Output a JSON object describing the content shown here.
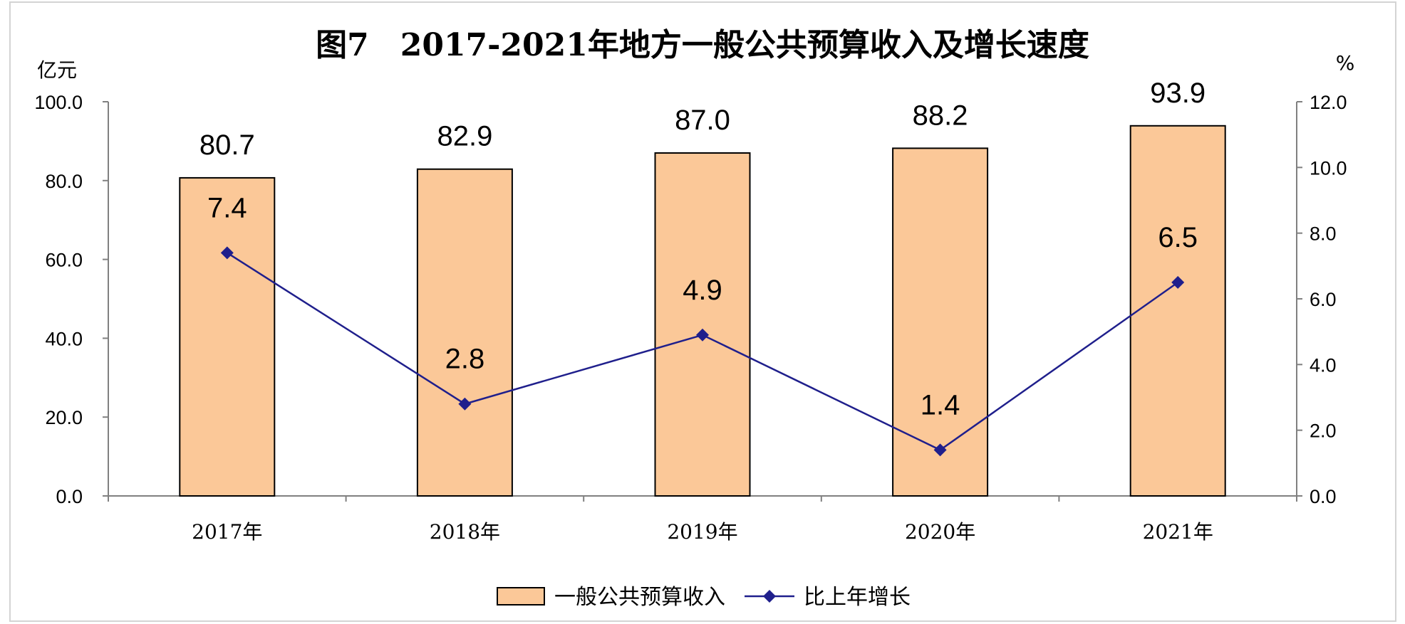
{
  "chart_data": {
    "type": "bar",
    "title": "图7　2017-2021年地方一般公共预算收入及增长速度",
    "categories": [
      "2017年",
      "2018年",
      "2019年",
      "2020年",
      "2021年"
    ],
    "y_left_unit": "亿元",
    "y_right_unit": "%",
    "y_left_ticks": [
      "0.0",
      "20.0",
      "40.0",
      "60.0",
      "80.0",
      "100.0"
    ],
    "y_right_ticks": [
      "0.0",
      "2.0",
      "4.0",
      "6.0",
      "8.0",
      "10.0",
      "12.0"
    ],
    "ylim_left": [
      0,
      100
    ],
    "ylim_right": [
      0,
      12
    ],
    "series": [
      {
        "name": "一般公共预算收入",
        "type": "bar",
        "axis": "left",
        "color": "#FBC898",
        "values": [
          80.7,
          82.9,
          87.0,
          88.2,
          93.9
        ],
        "labels": [
          "80.7",
          "82.9",
          "87.0",
          "88.2",
          "93.9"
        ]
      },
      {
        "name": "比上年增长",
        "type": "line",
        "axis": "right",
        "color": "#1F1F8C",
        "values": [
          7.4,
          2.8,
          4.9,
          1.4,
          6.5
        ],
        "labels": [
          "7.4",
          "2.8",
          "4.9",
          "1.4",
          "6.5"
        ]
      }
    ],
    "legend_position": "bottom-center",
    "grid": false
  }
}
